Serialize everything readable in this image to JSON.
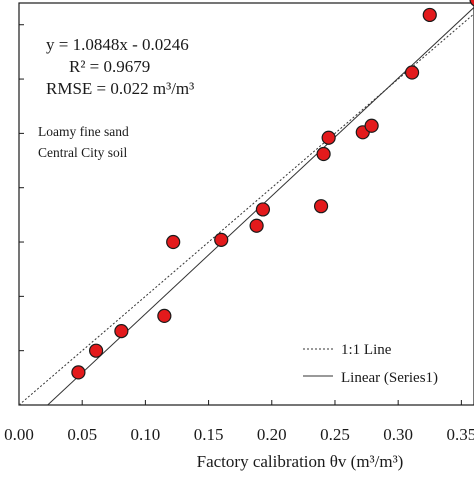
{
  "chart_data": {
    "type": "scatter",
    "xlabel": "Factory calibration θv (m³/m³)",
    "ylabel": "",
    "xlim": [
      0.0,
      0.36
    ],
    "ylim": [
      0.0,
      0.37
    ],
    "x_ticks": [
      0.0,
      0.05,
      0.1,
      0.15,
      0.2,
      0.25,
      0.3,
      0.35
    ],
    "x_tick_labels": [
      "0.00",
      "0.05",
      "0.10",
      "0.15",
      "0.20",
      "0.25",
      "0.30",
      "0.35"
    ],
    "y_ticks": [
      0.0,
      0.05,
      0.1,
      0.15,
      0.2,
      0.25,
      0.3,
      0.35
    ],
    "grid": false,
    "legend_position": "bottom-right",
    "annotations": {
      "equation": "y = 1.0848x - 0.0246",
      "r2": "R² = 0.9679",
      "rmse": "RMSE = 0.022 m³/m³",
      "soil_line1": "Loamy fine sand",
      "soil_line2": "Central City soil"
    },
    "series": [
      {
        "name": "Series1",
        "marker_color": "#e31a1c",
        "x": [
          0.047,
          0.061,
          0.081,
          0.115,
          0.122,
          0.16,
          0.188,
          0.193,
          0.239,
          0.241,
          0.245,
          0.272,
          0.279,
          0.311,
          0.325,
          0.362
        ],
        "y": [
          0.03,
          0.05,
          0.068,
          0.082,
          0.15,
          0.152,
          0.165,
          0.18,
          0.183,
          0.231,
          0.246,
          0.251,
          0.257,
          0.306,
          0.359,
          0.373
        ]
      }
    ],
    "lines": [
      {
        "name": "1:1 Line",
        "style": "dashed",
        "slope": 1.0,
        "intercept": 0.0
      },
      {
        "name": "Linear (Series1)",
        "style": "solid",
        "slope": 1.0848,
        "intercept": -0.0246
      }
    ],
    "legend": [
      "1:1 Line",
      "Linear (Series1)"
    ]
  }
}
